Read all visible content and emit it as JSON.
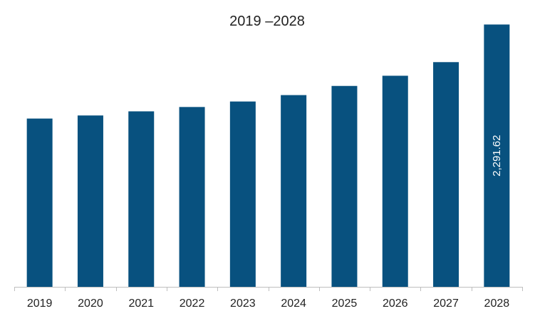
{
  "chart_data": {
    "type": "bar",
    "title": "2019 –2028",
    "xlabel": "",
    "ylabel": "",
    "categories": [
      "2019",
      "2020",
      "2021",
      "2022",
      "2023",
      "2024",
      "2025",
      "2026",
      "2027",
      "2028"
    ],
    "values": [
      1470,
      1497,
      1533,
      1571,
      1619,
      1675,
      1755,
      1844,
      1963,
      2291.62
    ],
    "data_labels": {
      "2028": "2,291.62"
    },
    "ylim": [
      0,
      2400
    ],
    "grid": false,
    "legend": "none",
    "bar_color": "#08517f"
  }
}
